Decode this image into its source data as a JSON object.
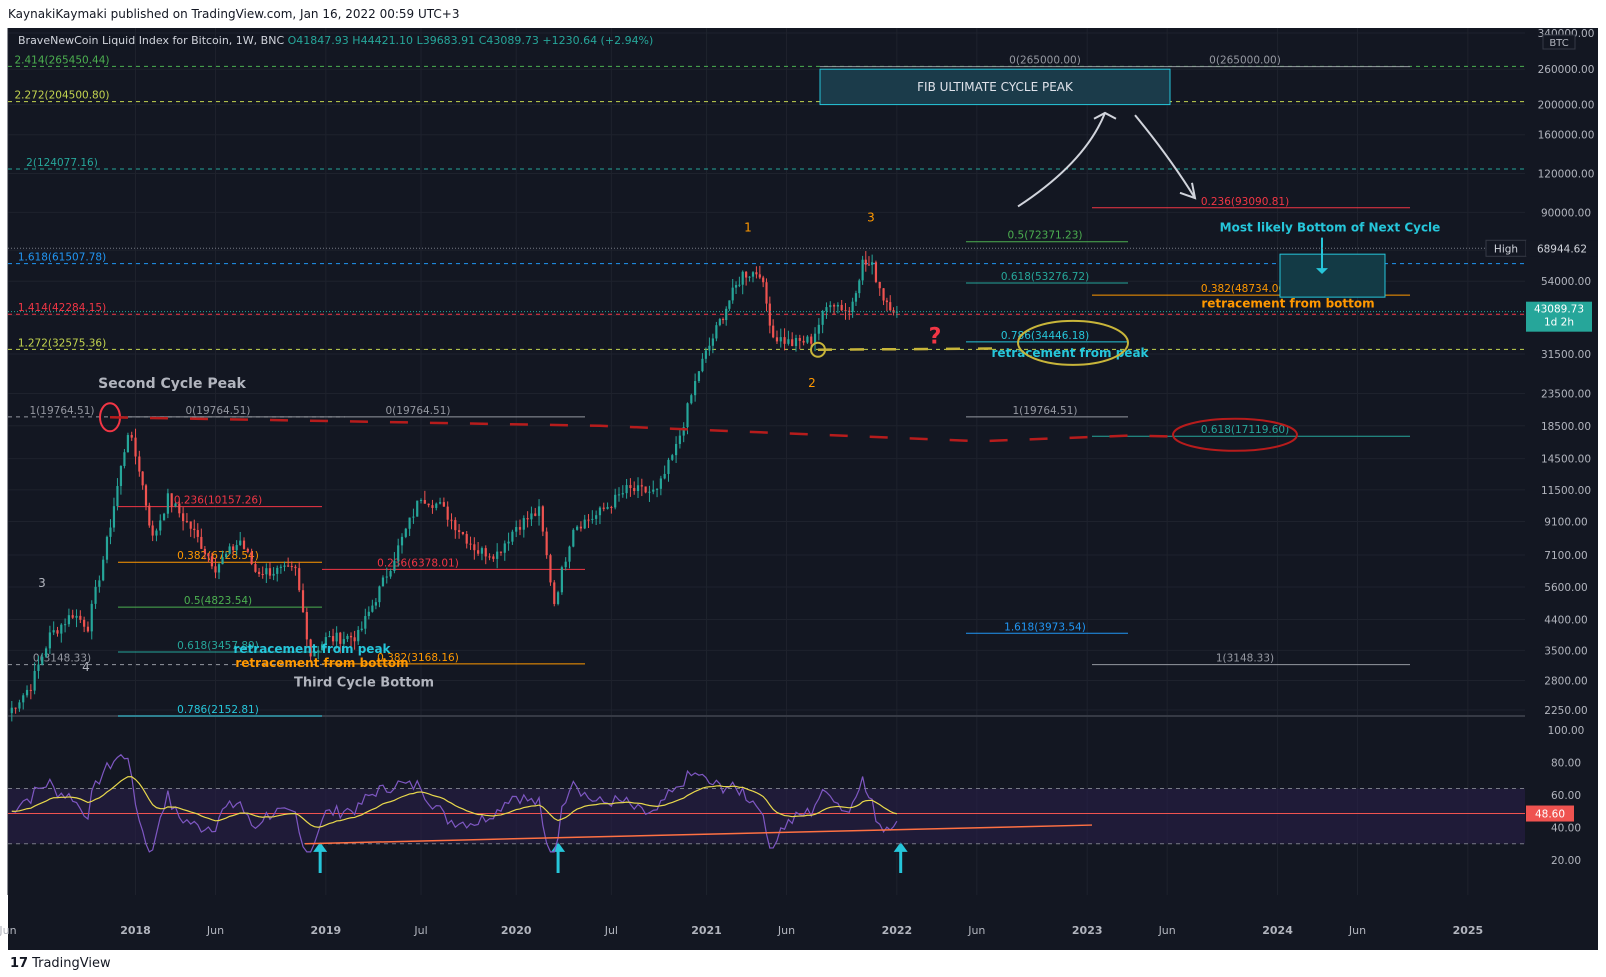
{
  "publisher": "KaynakiKaymaki published on TradingView.com, Jan 16, 2022 00:59 UTC+3",
  "brand": "TradingView",
  "brand_logo": "17",
  "legend": {
    "symbol": "BraveNewCoin Liquid Index for Bitcoin, 1W, BNC",
    "open": "O41847.93",
    "high": "H44421.10",
    "low": "L39683.91",
    "close": "C43089.73",
    "change": "+1230.64 (+2.94%)"
  },
  "currency_badge": "BTC",
  "last_price_label": "43089.73",
  "countdown_label": "1d 2h",
  "high_label": "High",
  "high_value": "68944.62",
  "rsi_value_label": "48.60",
  "colors": {
    "bg": "#131722",
    "up": "#26a69a",
    "down": "#ef5350",
    "rsi": "#7e57c2",
    "ma": "#e8d84c",
    "accent": "#26c6da"
  },
  "chart_data": [
    {
      "type": "candlestick",
      "title": "BraveNewCoin Liquid Index for Bitcoin, 1W, BNC",
      "scale": "log",
      "ylim": [
        2250,
        340000
      ],
      "y_ticks": [
        2250,
        2800,
        3500,
        4400,
        5600,
        7100,
        9100,
        11500,
        14500,
        18500,
        23500,
        31500,
        42000,
        54000,
        68000,
        90000,
        120000,
        160000,
        200000,
        260000,
        340000
      ],
      "y_tick_labels": [
        "2250.00",
        "2800.00",
        "3500.00",
        "4400.00",
        "5600.00",
        "7100.00",
        "9100.00",
        "11500.00",
        "14500.00",
        "18500.00",
        "23500.00",
        "31500.00",
        "42000.00",
        "54000.00",
        "68000.00",
        "90000.00",
        "120000.00",
        "160000.00",
        "200000.00",
        "260000.00",
        "340000.00"
      ],
      "x_range": [
        2017.33,
        2025.3
      ],
      "x_ticks": [
        {
          "t": 2017.33,
          "label": "Jun"
        },
        {
          "t": 2018.0,
          "label": "2018"
        },
        {
          "t": 2018.42,
          "label": "Jun"
        },
        {
          "t": 2019.0,
          "label": "2019"
        },
        {
          "t": 2019.5,
          "label": "Jul"
        },
        {
          "t": 2020.0,
          "label": "2020"
        },
        {
          "t": 2020.5,
          "label": "Jul"
        },
        {
          "t": 2021.0,
          "label": "2021"
        },
        {
          "t": 2021.42,
          "label": "Jun"
        },
        {
          "t": 2022.0,
          "label": "2022"
        },
        {
          "t": 2022.42,
          "label": "Jun"
        },
        {
          "t": 2023.0,
          "label": "2023"
        },
        {
          "t": 2023.42,
          "label": "Jun"
        },
        {
          "t": 2024.0,
          "label": "2024"
        },
        {
          "t": 2024.42,
          "label": "Jun"
        },
        {
          "t": 2025.0,
          "label": "2025"
        }
      ],
      "anchors": [
        [
          2017.33,
          2200
        ],
        [
          2017.45,
          2700
        ],
        [
          2017.55,
          3900
        ],
        [
          2017.67,
          4600
        ],
        [
          2017.75,
          4200
        ],
        [
          2017.85,
          7800
        ],
        [
          2017.96,
          17800
        ],
        [
          2018.02,
          13500
        ],
        [
          2018.09,
          8000
        ],
        [
          2018.17,
          10800
        ],
        [
          2018.29,
          8700
        ],
        [
          2018.42,
          6500
        ],
        [
          2018.55,
          7900
        ],
        [
          2018.63,
          6300
        ],
        [
          2018.84,
          6300
        ],
        [
          2018.92,
          3400
        ],
        [
          2019.0,
          3800
        ],
        [
          2019.17,
          3900
        ],
        [
          2019.3,
          5800
        ],
        [
          2019.42,
          8500
        ],
        [
          2019.5,
          11000
        ],
        [
          2019.6,
          10200
        ],
        [
          2019.72,
          8300
        ],
        [
          2019.8,
          7300
        ],
        [
          2019.9,
          7200
        ],
        [
          2020.0,
          8800
        ],
        [
          2020.12,
          9800
        ],
        [
          2020.2,
          5000
        ],
        [
          2020.3,
          8800
        ],
        [
          2020.42,
          9500
        ],
        [
          2020.58,
          11500
        ],
        [
          2020.74,
          11300
        ],
        [
          2020.84,
          15700
        ],
        [
          2020.96,
          28000
        ],
        [
          2021.07,
          40000
        ],
        [
          2021.12,
          47000
        ],
        [
          2021.19,
          57000
        ],
        [
          2021.28,
          58000
        ],
        [
          2021.35,
          36000
        ],
        [
          2021.45,
          34000
        ],
        [
          2021.55,
          35000
        ],
        [
          2021.65,
          47000
        ],
        [
          2021.75,
          43000
        ],
        [
          2021.82,
          62000
        ],
        [
          2021.87,
          60000
        ],
        [
          2021.93,
          48000
        ],
        [
          2022.0,
          43089.73
        ]
      ],
      "series": [
        {
          "name": "RSI",
          "values_range": [
            20,
            100
          ],
          "note": "oscillator panel"
        },
        {
          "name": "RSI MA",
          "values_range": [
            20,
            100
          ]
        }
      ],
      "fib_levels": [
        {
          "label": "2.414(265450.44)",
          "value": 265450.44
        },
        {
          "label": "2.272(204500.80)",
          "value": 204500.8
        },
        {
          "label": "2(124077.16)",
          "value": 124077.16
        },
        {
          "label": "1.618(61507.78)",
          "value": 61507.78
        },
        {
          "label": "1.414(42284.15)",
          "value": 42284.15
        },
        {
          "label": "1.272(32575.36)",
          "value": 32575.36
        },
        {
          "label": "1(19764.51)",
          "value": 19764.51
        },
        {
          "label": "0(3148.33)",
          "value": 3148.33
        },
        {
          "label": "0(265000.00)",
          "value": 265000
        },
        {
          "label": "0(265000.00)",
          "value": 265000
        },
        {
          "label": "0.236(93090.81)",
          "value": 93090.81
        },
        {
          "label": "0.5(72371.23)",
          "value": 72371.23
        },
        {
          "label": "0.618(53276.72)",
          "value": 53276.72
        },
        {
          "label": "0.382(48734.06)",
          "value": 48734.06
        },
        {
          "label": "0.786(34446.18)",
          "value": 34446.18
        },
        {
          "label": "1(19764.51)",
          "value": 19764.51
        },
        {
          "label": "0.618(17119.60)",
          "value": 17119.6
        },
        {
          "label": "1.618(3973.54)",
          "value": 3973.54
        },
        {
          "label": "1(3148.33)",
          "value": 3148.33
        },
        {
          "label": "0(19764.51)",
          "value": 19764.51
        },
        {
          "label": "0(19764.51)",
          "value": 19764.51
        },
        {
          "label": "0.236(10157.26)",
          "value": 10157.26
        },
        {
          "label": "0.382(6728.54)",
          "value": 6728.54
        },
        {
          "label": "0.5(4823.54)",
          "value": 4823.54
        },
        {
          "label": "0.618(3457.89)",
          "value": 3457.89
        },
        {
          "label": "0.786(2152.81)",
          "value": 2152.81
        },
        {
          "label": "0.236(6378.01)",
          "value": 6378.01
        },
        {
          "label": "0.382(3168.16)",
          "value": 3168.16
        }
      ],
      "annotations": [
        "FIB ULTIMATE CYCLE PEAK",
        "Most likely Bottom of Next Cycle",
        "retracement from bottom",
        "retracement from peak",
        "retracement from peak",
        "retracement from bottom",
        "Second Cycle Peak",
        "Third Cycle Bottom",
        "1",
        "2",
        "3",
        "3",
        "4",
        "?"
      ]
    },
    {
      "type": "line",
      "title": "RSI",
      "ylim": [
        20,
        100
      ],
      "y_tick_labels": [
        "100.00",
        "80.00",
        "60.00",
        "40.00",
        "20.00"
      ],
      "y_ticks": [
        100,
        80,
        60,
        40,
        20
      ],
      "band": [
        30,
        70
      ],
      "current_value": 48.6
    }
  ]
}
